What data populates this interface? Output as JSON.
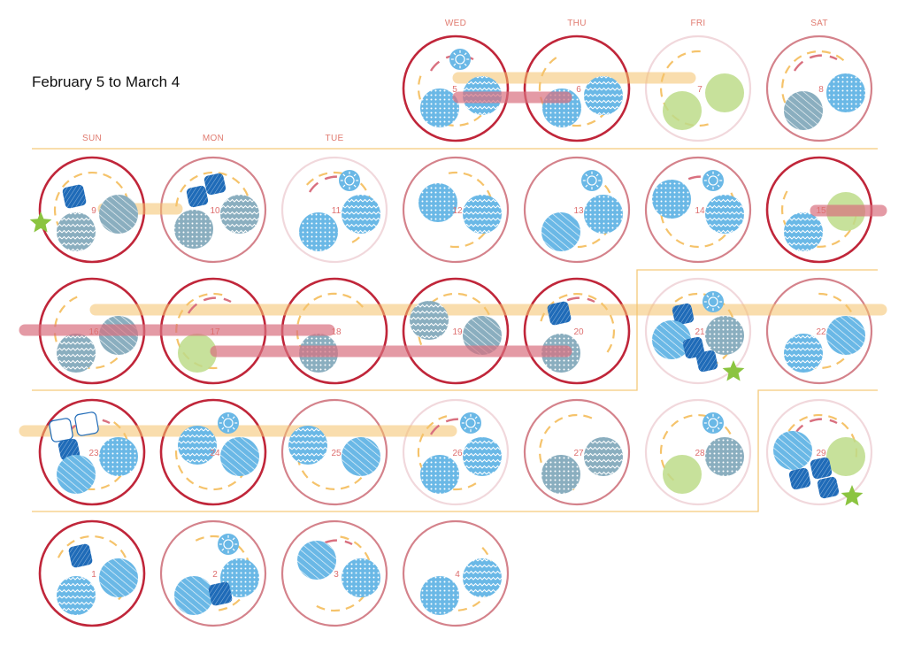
{
  "title": "February 5 to March 4",
  "weekdays": [
    "SUN",
    "MON",
    "TUE",
    "WED",
    "THU",
    "FRI",
    "SAT"
  ],
  "colors": {
    "ring_dark": "#c0263a",
    "ring_mid": "#d4828b",
    "ring_light": "#f1d8dc",
    "blue": "#6ab8e6",
    "teal": "#8aaebf",
    "green": "#bddc8a",
    "navy": "#1f6bb8",
    "orange": "#f5c36b",
    "rose": "#d9707f",
    "star": "#8bc440",
    "divider": "#f5c97a"
  },
  "days": [
    {
      "label": "5",
      "ring": "dark"
    },
    {
      "label": "6",
      "ring": "dark"
    },
    {
      "label": "7",
      "ring": "light"
    },
    {
      "label": "8",
      "ring": "mid"
    },
    {
      "label": "9",
      "ring": "dark"
    },
    {
      "label": "10",
      "ring": "mid"
    },
    {
      "label": "11",
      "ring": "light"
    },
    {
      "label": "12",
      "ring": "mid"
    },
    {
      "label": "13",
      "ring": "mid"
    },
    {
      "label": "14",
      "ring": "mid"
    },
    {
      "label": "15",
      "ring": "dark"
    },
    {
      "label": "16",
      "ring": "dark"
    },
    {
      "label": "17",
      "ring": "dark"
    },
    {
      "label": "18",
      "ring": "dark"
    },
    {
      "label": "19",
      "ring": "dark"
    },
    {
      "label": "20",
      "ring": "dark"
    },
    {
      "label": "21",
      "ring": "light"
    },
    {
      "label": "22",
      "ring": "mid"
    },
    {
      "label": "23",
      "ring": "dark"
    },
    {
      "label": "24",
      "ring": "dark"
    },
    {
      "label": "25",
      "ring": "mid"
    },
    {
      "label": "26",
      "ring": "light"
    },
    {
      "label": "27",
      "ring": "mid"
    },
    {
      "label": "28",
      "ring": "light"
    },
    {
      "label": "29",
      "ring": "light"
    },
    {
      "label": "1",
      "ring": "dark"
    },
    {
      "label": "2",
      "ring": "mid"
    },
    {
      "label": "3",
      "ring": "mid"
    },
    {
      "label": "4",
      "ring": "mid"
    }
  ]
}
